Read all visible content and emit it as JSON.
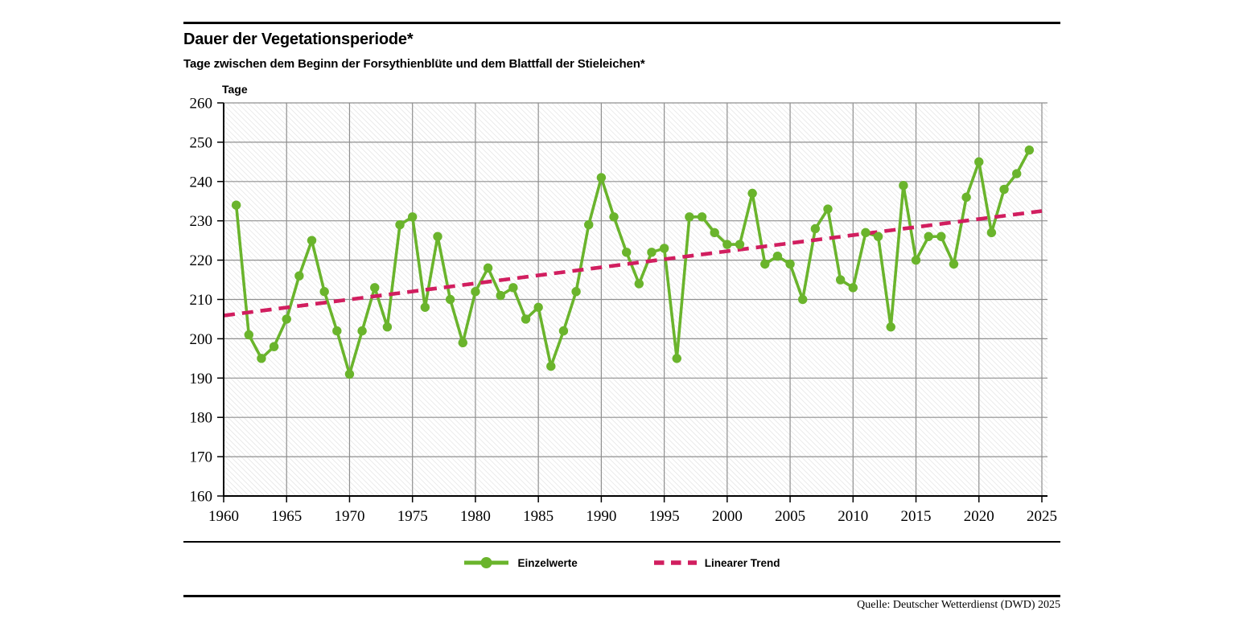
{
  "header": {
    "title": "Dauer der Vegetationsperiode*",
    "subtitle": "Tage zwischen dem Beginn der Forsythienblüte und dem Blattfall der Stieleichen*"
  },
  "chart_data": {
    "type": "line",
    "title": "Dauer der Vegetationsperiode*",
    "subtitle": "Tage zwischen dem Beginn der Forsythienblüte und dem Blattfall der Stieleichen*",
    "xlabel": "",
    "ylabel": "Tage",
    "xlim": [
      1960,
      2025
    ],
    "ylim": [
      160,
      260
    ],
    "xticks": [
      1960,
      1965,
      1970,
      1975,
      1980,
      1985,
      1990,
      1995,
      2000,
      2005,
      2010,
      2015,
      2020,
      2025
    ],
    "yticks": [
      160,
      170,
      180,
      190,
      200,
      210,
      220,
      230,
      240,
      250,
      260
    ],
    "grid": true,
    "legend_position": "bottom",
    "colors": {
      "series": "#6ab42c",
      "trend": "#d11e5f",
      "gridline": "#8f8f8f",
      "axis": "#000000",
      "hatch": "#dedede"
    },
    "series": [
      {
        "name": "Einzelwerte",
        "color": "#6ab42c",
        "x": [
          1961,
          1962,
          1963,
          1964,
          1965,
          1966,
          1967,
          1968,
          1969,
          1970,
          1971,
          1972,
          1973,
          1974,
          1975,
          1976,
          1977,
          1978,
          1979,
          1980,
          1981,
          1982,
          1983,
          1984,
          1985,
          1986,
          1987,
          1988,
          1989,
          1990,
          1991,
          1992,
          1993,
          1994,
          1995,
          1996,
          1997,
          1998,
          1999,
          2000,
          2001,
          2002,
          2003,
          2004,
          2005,
          2006,
          2007,
          2008,
          2009,
          2010,
          2011,
          2012,
          2013,
          2014,
          2015,
          2016,
          2017,
          2018,
          2019,
          2020,
          2021,
          2022,
          2023,
          2024
        ],
        "values": [
          234,
          201,
          195,
          198,
          205,
          216,
          225,
          212,
          202,
          191,
          202,
          213,
          203,
          229,
          231,
          208,
          226,
          210,
          199,
          212,
          218,
          211,
          213,
          205,
          208,
          193,
          202,
          212,
          229,
          241,
          231,
          222,
          214,
          222,
          223,
          195,
          231,
          231,
          227,
          224,
          224,
          237,
          219,
          221,
          219,
          210,
          228,
          233,
          215,
          213,
          227,
          226,
          203,
          239,
          220,
          226,
          226,
          219,
          236,
          245,
          227,
          238,
          242,
          248
        ]
      }
    ],
    "trend": {
      "name": "Linearer Trend",
      "color": "#d11e5f",
      "x": [
        1960,
        2025
      ],
      "values": [
        205.9,
        232.5
      ]
    }
  },
  "legend": {
    "items": [
      {
        "label": "Einzelwerte",
        "type": "line-with-dot",
        "color": "#6ab42c"
      },
      {
        "label": "Linearer Trend",
        "type": "dashed-line",
        "color": "#d11e5f"
      }
    ]
  },
  "footer": {
    "source": "Quelle: Deutscher Wetterdienst (DWD) 2025"
  }
}
